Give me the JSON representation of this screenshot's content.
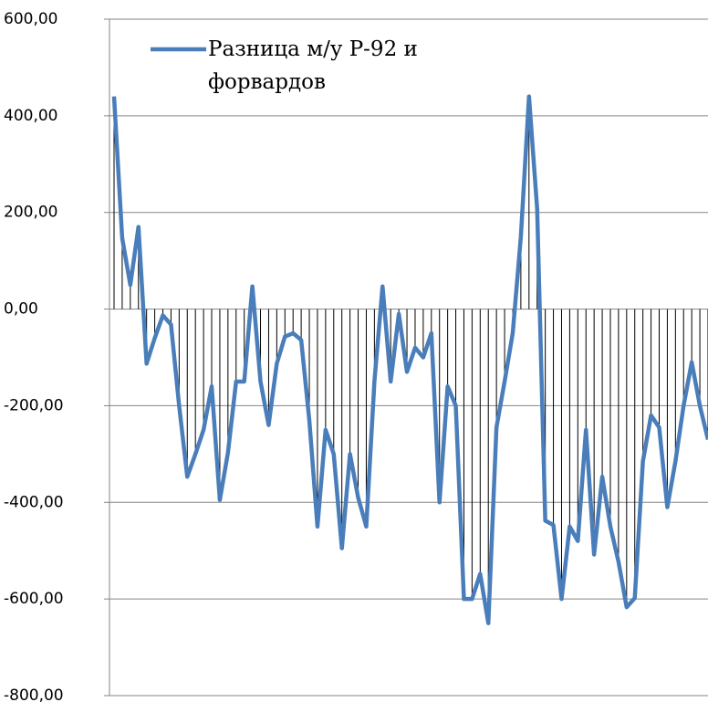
{
  "chart_data": {
    "type": "line",
    "categories": [
      null,
      null,
      null,
      null,
      null,
      null,
      null,
      null,
      null,
      null,
      null,
      null,
      null,
      null,
      null,
      null,
      null,
      null,
      null,
      null,
      null,
      null,
      null,
      null,
      null,
      null,
      null,
      null,
      null,
      null,
      null,
      null,
      null,
      null,
      null,
      null,
      null,
      null,
      null,
      null,
      null,
      null,
      null,
      null,
      null,
      null,
      null,
      null,
      null,
      null,
      null,
      null,
      null,
      null,
      null,
      null,
      null,
      null,
      null,
      null,
      null,
      null,
      null,
      null,
      null,
      null,
      null,
      null,
      null,
      null,
      null,
      null,
      null,
      null
    ],
    "series": [
      {
        "name": "Разница м/у Р-92 и форвардов",
        "color": "#4a7ebb",
        "values": [
          440,
          147,
          50,
          170,
          -113,
          -60,
          -13,
          -32,
          -200,
          -347,
          -300,
          -250,
          -160,
          -395,
          -297,
          -150,
          -150,
          47,
          -150,
          -240,
          -113,
          -57,
          -50,
          -64,
          -230,
          -450,
          -250,
          -300,
          -495,
          -300,
          -390,
          -450,
          -150,
          47,
          -150,
          -10,
          -130,
          -80,
          -100,
          -50,
          -400,
          -160,
          -200,
          -600,
          -600,
          -548,
          -650,
          -245,
          -150,
          -50,
          150,
          440,
          208,
          -438,
          -447,
          -600,
          -450,
          -480,
          -250,
          -508,
          -347,
          -450,
          -523,
          -617,
          -598,
          -315,
          -220,
          -245,
          -410,
          -315,
          -200,
          -110,
          -200,
          -270
        ]
      }
    ],
    "ylim": [
      -800,
      600
    ],
    "yticks": [
      {
        "value": -800,
        "label": "-800,00"
      },
      {
        "value": -600,
        "label": "-600,00"
      },
      {
        "value": -400,
        "label": "-400,00"
      },
      {
        "value": -200,
        "label": "-200,00"
      },
      {
        "value": 0,
        "label": "0,00"
      },
      {
        "value": 200,
        "label": "200,00"
      },
      {
        "value": 400,
        "label": "400,00"
      },
      {
        "value": 600,
        "label": "600,00"
      }
    ],
    "grid": true,
    "drop_lines": true
  }
}
